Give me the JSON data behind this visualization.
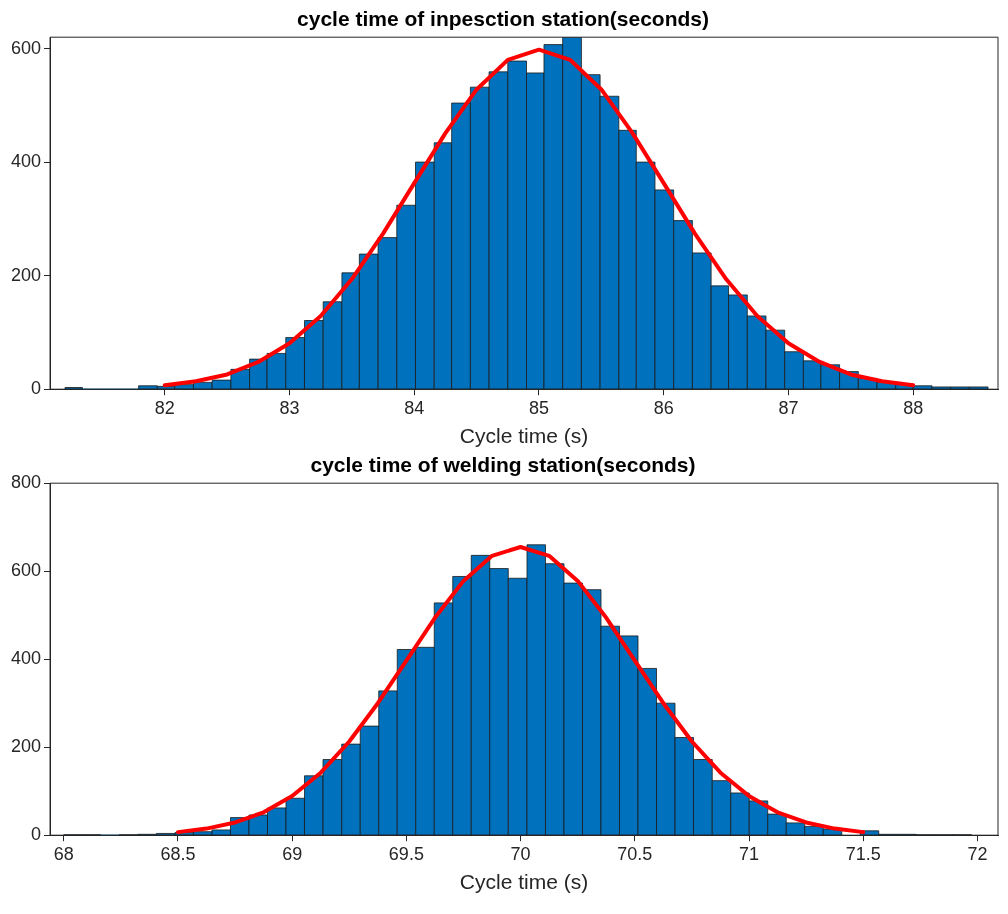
{
  "chart_data": [
    {
      "type": "histogram",
      "title": "cycle time of inpesction station(seconds)",
      "xlabel": "Cycle time (s)",
      "bins": [
        81.2,
        81.34,
        81.49,
        81.64,
        81.79,
        81.94,
        82.08,
        82.23,
        82.38,
        82.53,
        82.68,
        82.82,
        82.97,
        83.12,
        83.27,
        83.42,
        83.56,
        83.71,
        83.86,
        84.01,
        84.16,
        84.3,
        84.45,
        84.6,
        84.75,
        84.9,
        85.04,
        85.19,
        85.34,
        85.49,
        85.64,
        85.78,
        85.93,
        86.08,
        86.23,
        86.38,
        86.52,
        86.67,
        86.82,
        86.97,
        87.12,
        87.26,
        87.41,
        87.56,
        87.71,
        87.86,
        88.0,
        88.15,
        88.3,
        88.45,
        88.6
      ],
      "xlim": [
        81.08,
        88.68
      ],
      "ylim": [
        0,
        620
      ],
      "xticks": [
        82,
        83,
        84,
        85,
        86,
        87,
        88
      ],
      "yticks": [
        0,
        200,
        400,
        600
      ],
      "series": [
        {
          "type": "histogram",
          "color": "#0072bd",
          "values": [
            3,
            0,
            0,
            0,
            6,
            5,
            8,
            12,
            16,
            35,
            53,
            63,
            91,
            121,
            154,
            205,
            238,
            267,
            324,
            400,
            434,
            504,
            532,
            559,
            578,
            557,
            607,
            620,
            554,
            516,
            456,
            400,
            351,
            297,
            240,
            182,
            166,
            129,
            104,
            66,
            50,
            43,
            31,
            19,
            12,
            9,
            6,
            4,
            4,
            4
          ]
        },
        {
          "type": "line",
          "color": "#ff0000",
          "marker": "none",
          "x": [
            82,
            82.25,
            82.5,
            82.75,
            83,
            83.25,
            83.5,
            83.75,
            84,
            84.25,
            84.5,
            84.75,
            85,
            85.25,
            85.5,
            85.75,
            86,
            86.25,
            86.5,
            86.75,
            87,
            87.25,
            87.5,
            87.75,
            88
          ],
          "values": [
            7,
            14,
            26,
            48,
            81,
            129,
            194,
            274,
            363,
            451,
            528,
            580,
            598,
            580,
            528,
            451,
            363,
            274,
            194,
            129,
            81,
            48,
            26,
            14,
            7
          ]
        }
      ]
    },
    {
      "type": "histogram",
      "title": "cycle time of welding station(seconds)",
      "xlabel": "Cycle time (s)",
      "bins": [
        68.0,
        68.081,
        68.162,
        68.243,
        68.324,
        68.406,
        68.487,
        68.568,
        68.649,
        68.73,
        68.811,
        68.892,
        68.973,
        69.054,
        69.135,
        69.217,
        69.298,
        69.379,
        69.46,
        69.541,
        69.622,
        69.703,
        69.784,
        69.865,
        69.946,
        70.028,
        70.109,
        70.19,
        70.271,
        70.352,
        70.433,
        70.514,
        70.595,
        70.676,
        70.757,
        70.839,
        70.92,
        71.001,
        71.082,
        71.163,
        71.244,
        71.325,
        71.406,
        71.487,
        71.568,
        71.65,
        71.731,
        71.812,
        71.893,
        71.974
      ],
      "xlim": [
        67.94,
        72.09
      ],
      "ylim": [
        0,
        800
      ],
      "xticks": [
        68,
        68.5,
        69,
        69.5,
        70,
        70.5,
        71,
        71.5,
        72
      ],
      "yticks": [
        0,
        200,
        400,
        600,
        800
      ],
      "series": [
        {
          "type": "histogram",
          "color": "#0072bd",
          "values": [
            1,
            1,
            0,
            1,
            2,
            4,
            6,
            8,
            12,
            40,
            46,
            62,
            84,
            135,
            172,
            207,
            248,
            328,
            422,
            427,
            528,
            588,
            636,
            606,
            584,
            660,
            617,
            573,
            558,
            475,
            453,
            379,
            300,
            222,
            172,
            124,
            96,
            78,
            48,
            28,
            20,
            14,
            null,
            10,
            2,
            2,
            1,
            1,
            1
          ]
        },
        {
          "type": "line",
          "color": "#ff0000",
          "marker": "none",
          "x": [
            68.5,
            68.625,
            68.75,
            68.875,
            69,
            69.125,
            69.25,
            69.375,
            69.5,
            69.625,
            69.75,
            69.875,
            70,
            70.125,
            70.25,
            70.375,
            70.5,
            70.625,
            70.75,
            70.875,
            71,
            71.125,
            71.25,
            71.375,
            71.5
          ],
          "values": [
            7,
            15,
            29,
            52,
            89,
            142,
            213,
            300,
            397,
            494,
            578,
            635,
            655,
            635,
            578,
            494,
            397,
            300,
            213,
            142,
            89,
            52,
            29,
            15,
            7
          ]
        }
      ]
    }
  ]
}
